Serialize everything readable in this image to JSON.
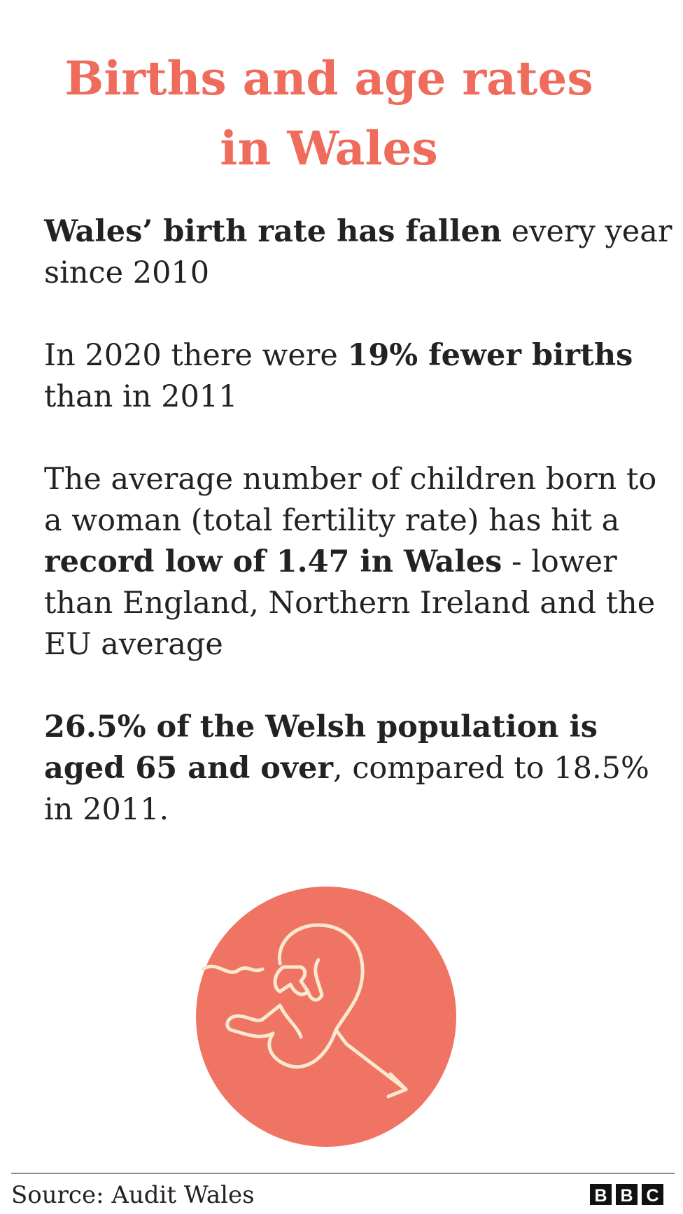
{
  "header": {
    "title_lines": [
      "Births and age rates",
      "in Wales"
    ]
  },
  "paragraphs": [
    {
      "runs": [
        {
          "text": "Wales’ birth rate has fallen",
          "bold": true
        },
        {
          "text": " every year since 2010",
          "bold": false
        }
      ]
    },
    {
      "runs": [
        {
          "text": "In 2020 there were ",
          "bold": false
        },
        {
          "text": "19% fewer births",
          "bold": true
        },
        {
          "text": " than in 2011",
          "bold": false
        }
      ]
    },
    {
      "runs": [
        {
          "text": "The average number of children born to a woman (total fertility rate) has hit a ",
          "bold": false
        },
        {
          "text": "record low of 1.47 in Wales",
          "bold": true
        },
        {
          "text": " - lower than England, Northern Ireland and the EU average",
          "bold": false
        }
      ]
    },
    {
      "runs": [
        {
          "text": "26.5% of the Welsh population is aged 65 and over",
          "bold": true
        },
        {
          "text": ", compared to 18.5% in 2011.",
          "bold": false
        }
      ]
    }
  ],
  "footer": {
    "source": "Source: Audit Wales",
    "logo": "BBC"
  }
}
